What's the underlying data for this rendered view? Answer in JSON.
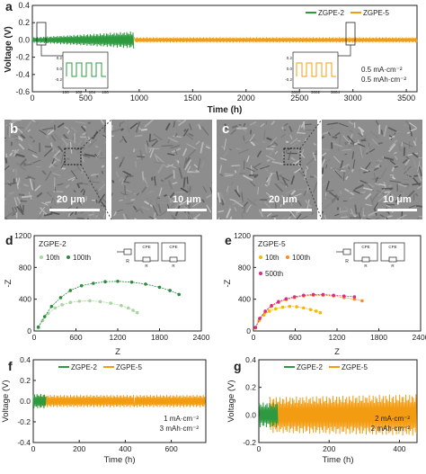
{
  "colors": {
    "zgpe2": "#2e9a3f",
    "zgpe5": "#f39c12",
    "eis_10th_a": "#a8d5a0",
    "eis_100th_a": "#2e8b3e",
    "eis_10th_b": "#f5b800",
    "eis_100th_b": "#ff8c1a",
    "eis_500th_b": "#d62b8c",
    "axis": "#222222",
    "sem_bg": "#8d8d8d"
  },
  "panels": {
    "a": {
      "letter": "a",
      "legend": [
        "ZGPE-2",
        "ZGPE-5"
      ],
      "annotation": [
        "0.5 mA·cm⁻²",
        "0.5 mAh·cm⁻²"
      ],
      "chart_data": {
        "type": "line",
        "xlabel": "Time (h)",
        "ylabel": "Voltage (V)",
        "xlim": [
          0,
          3600
        ],
        "ylim": [
          -0.6,
          0.4
        ],
        "xticks": [
          "0",
          "500",
          "1000",
          "1500",
          "2000",
          "2500",
          "3000",
          "3500"
        ],
        "yticks": [
          "-0.6",
          "-0.4",
          "-0.2",
          "0.0",
          "0.2",
          "0.4"
        ],
        "series": [
          {
            "name": "ZGPE-2",
            "x_range": [
              0,
              950
            ],
            "amplitude": [
              0.03,
              0.1
            ]
          },
          {
            "name": "ZGPE-5",
            "x_range": [
              950,
              3600
            ],
            "amplitude": [
              0.03,
              0.03
            ]
          }
        ],
        "inset_left": {
          "xticks": [
            "100",
            "102",
            "104",
            "106"
          ],
          "yticks": [
            "0.2",
            "0.0",
            "-0.2"
          ]
        },
        "inset_right": {
          "xticks": [
            "3000",
            "3002",
            "3004"
          ],
          "yticks": [
            "0.2",
            "0.0",
            "-0.2"
          ]
        }
      }
    },
    "b": {
      "letter": "b",
      "scale_left": "20 μm",
      "scale_right": "10 μm"
    },
    "c": {
      "letter": "c",
      "scale_left": "20 μm",
      "scale_right": "10 μm"
    },
    "d": {
      "letter": "d",
      "label": "ZGPE-2",
      "circuit": {
        "rs": "R",
        "cpe1": "CPE",
        "r1": "R",
        "cpe2": "CPE",
        "r2": "R"
      },
      "chart_data": {
        "type": "scatter",
        "xlabel": "Z_real (Ohm)",
        "ylabel": "-Z_img (Ohm)",
        "xlim": [
          0,
          2400
        ],
        "ylim": [
          0,
          1200
        ],
        "xticks": [
          "0",
          "600",
          "1200",
          "1800",
          "2400"
        ],
        "yticks": [
          "0",
          "400",
          "800",
          "1200"
        ],
        "series": [
          {
            "name": "10th",
            "x": [
              60,
              120,
              200,
              300,
              400,
              520,
              650,
              800,
              950,
              1100,
              1250,
              1350,
              1420,
              1480
            ],
            "y": [
              40,
              130,
              220,
              290,
              330,
              360,
              375,
              380,
              370,
              350,
              320,
              290,
              260,
              230
            ]
          },
          {
            "name": "100th",
            "x": [
              60,
              150,
              250,
              380,
              520,
              680,
              850,
              1020,
              1200,
              1400,
              1600,
              1800,
              1950,
              2080
            ],
            "y": [
              50,
              180,
              310,
              420,
              510,
              570,
              600,
              620,
              625,
              615,
              590,
              550,
              510,
              460
            ]
          }
        ]
      }
    },
    "e": {
      "letter": "e",
      "label": "ZGPE-5",
      "circuit": {
        "rs": "R",
        "cpe1": "CPE",
        "r1": "R",
        "cpe2": "CPE",
        "r2": "R"
      },
      "chart_data": {
        "type": "scatter",
        "xlabel": "Z_real (Ohm)",
        "ylabel": "-Z_img (Ohm)",
        "xlim": [
          0,
          2400
        ],
        "ylim": [
          0,
          1200
        ],
        "xticks": [
          "0",
          "600",
          "1200",
          "1800",
          "2400"
        ],
        "yticks": [
          "0",
          "400",
          "800",
          "1200"
        ],
        "series": [
          {
            "name": "10th",
            "x": [
              30,
              80,
              150,
              230,
              320,
              420,
              520,
              620,
              720,
              820,
              900,
              960
            ],
            "y": [
              40,
              130,
              200,
              250,
              280,
              300,
              310,
              305,
              290,
              270,
              250,
              230
            ]
          },
          {
            "name": "100th",
            "x": [
              30,
              90,
              170,
              260,
              360,
              470,
              590,
              720,
              860,
              1000,
              1150,
              1300,
              1450,
              1560
            ],
            "y": [
              40,
              150,
              240,
              310,
              360,
              395,
              420,
              440,
              450,
              450,
              440,
              420,
              400,
              380
            ]
          },
          {
            "name": "500th",
            "x": [
              30,
              90,
              170,
              260,
              360,
              470,
              590,
              720,
              860,
              1000,
              1150,
              1300,
              1450
            ],
            "y": [
              45,
              160,
              250,
              320,
              370,
              405,
              430,
              450,
              460,
              460,
              450,
              440,
              430
            ]
          }
        ]
      }
    },
    "f": {
      "letter": "f",
      "legend": [
        "ZGPE-2",
        "ZGPE-5"
      ],
      "annotation": [
        "1 mA·cm⁻²",
        "3 mAh·cm⁻²"
      ],
      "chart_data": {
        "type": "line",
        "xlabel": "Time (h)",
        "ylabel": "Voltage (V)",
        "xlim": [
          0,
          750
        ],
        "ylim": [
          -0.4,
          0.4
        ],
        "xticks": [
          "0",
          "200",
          "400",
          "600"
        ],
        "yticks": [
          "-0.4",
          "-0.2",
          "0.0",
          "0.2",
          "0.4"
        ],
        "series": [
          {
            "name": "ZGPE-2",
            "x_range": [
              0,
              55
            ],
            "amplitude": [
              0.07,
              0.07
            ]
          },
          {
            "name": "ZGPE-5",
            "x_range": [
              20,
              750
            ],
            "amplitude": [
              0.06,
              0.06
            ]
          }
        ]
      }
    },
    "g": {
      "letter": "g",
      "legend": [
        "ZGPE-2",
        "ZGPE-5"
      ],
      "annotation": [
        "2 mA·cm⁻²",
        "2 mAh·cm⁻²"
      ],
      "chart_data": {
        "type": "line",
        "xlabel": "Time (h)",
        "ylabel": "Voltage (V)",
        "xlim": [
          0,
          450
        ],
        "ylim": [
          -0.2,
          0.4
        ],
        "xticks": [
          "0",
          "200",
          "400"
        ],
        "yticks": [
          "-0.2",
          "0.0",
          "0.2",
          "0.4"
        ],
        "series": [
          {
            "name": "ZGPE-2",
            "x_range": [
              0,
              55
            ],
            "amplitude": [
              0.09,
              0.09
            ]
          },
          {
            "name": "ZGPE-5",
            "x_range": [
              30,
              450
            ],
            "amplitude": [
              0.13,
              0.15
            ]
          }
        ]
      }
    }
  }
}
